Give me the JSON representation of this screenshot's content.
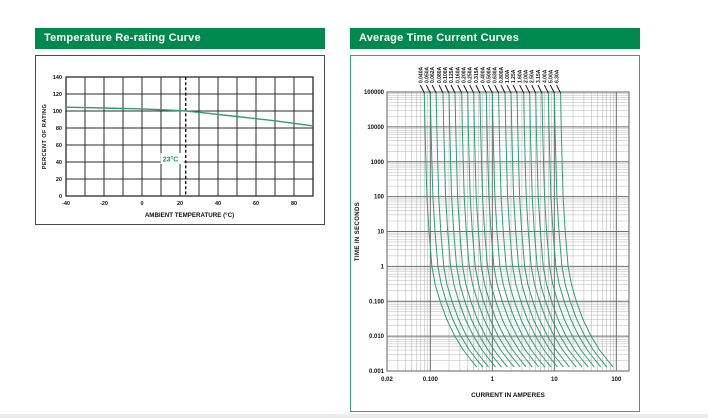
{
  "page": {
    "background": "#ffffff",
    "footer_strip_color": "#e9edf2"
  },
  "left_panel": {
    "title": "Temperature Re-rating Curve",
    "header_bg": "#00894E",
    "header_text_color": "#ffffff",
    "box_border_color": "#4a4a4a"
  },
  "right_panel": {
    "title": "Average Time Current Curves",
    "header_bg": "#00894E",
    "header_text_color": "#ffffff",
    "box_border_color": "#3aa07c"
  },
  "chart_data": [
    {
      "type": "line",
      "title": "Temperature Re-rating Curve",
      "xlabel": "AMBIENT TEMPERATURE (°C)",
      "ylabel": "PERCENT OF RATING",
      "xlim": [
        -40,
        90
      ],
      "ylim": [
        0,
        140
      ],
      "x_ticks": [
        -40,
        -20,
        0,
        20,
        40,
        60,
        80
      ],
      "y_ticks": [
        0,
        20,
        40,
        60,
        80,
        100,
        120,
        140
      ],
      "x_grid_step": 10,
      "y_grid_step": 20,
      "grid_color": "#2b2b2b",
      "curve_color": "#2e9c74",
      "reference_line": {
        "x": 23,
        "label": "23°C",
        "label_color": "#169b62",
        "line_style": "dashed"
      },
      "series": [
        {
          "name": "percent-of-rating-vs-temperature",
          "points": [
            [
              -40,
              104.5
            ],
            [
              -30,
              104
            ],
            [
              -20,
              103.5
            ],
            [
              -10,
              103
            ],
            [
              0,
              102.5
            ],
            [
              10,
              101.5
            ],
            [
              23,
              100
            ],
            [
              30,
              98.5
            ],
            [
              40,
              96
            ],
            [
              50,
              93.5
            ],
            [
              60,
              91
            ],
            [
              70,
              88.5
            ],
            [
              80,
              85.5
            ],
            [
              90,
              82.5
            ]
          ]
        }
      ]
    },
    {
      "type": "line",
      "title": "Average Time Current Curves",
      "xlabel": "CURRENT IN AMPERES",
      "ylabel": "TIME IN SECONDS",
      "x_scale": "log",
      "y_scale": "log",
      "xlim": [
        0.02,
        160
      ],
      "ylim": [
        0.001,
        100000
      ],
      "x_ticks": [
        0.02,
        0.1,
        1,
        10,
        100
      ],
      "x_tick_labels": [
        "0.02",
        "0.100",
        "1",
        "10",
        "100"
      ],
      "y_ticks": [
        100000,
        10000,
        1000,
        100,
        10,
        1,
        0.1,
        0.01,
        0.001
      ],
      "y_tick_labels": [
        "100000",
        "10000",
        "1000",
        "100",
        "10",
        "1",
        "0.100",
        "0.010",
        "0.001"
      ],
      "grid_major_color": "#6f6f6f",
      "grid_minor_color": "#b9b9b9",
      "curve_color": "#2e9c74",
      "ratings": [
        0.04,
        0.05,
        0.062,
        0.08,
        0.1,
        0.125,
        0.16,
        0.2,
        0.25,
        0.315,
        0.4,
        0.5,
        0.63,
        0.8,
        1.0,
        1.25,
        1.6,
        2.0,
        2.5,
        3.15,
        4.0,
        5.0,
        6.3
      ],
      "rating_labels": [
        "0.040A",
        "0.050A",
        "0.062A",
        "0.080A",
        "0.100A",
        "0.125A",
        "0.160A",
        "0.200A",
        "0.250A",
        "0.315A",
        "0.400A",
        "0.500A",
        "0.630A",
        "0.800A",
        "1.00A",
        "1.25A",
        "1.60A",
        "2.00A",
        "2.50A",
        "3.15A",
        "4.00A",
        "5.00A",
        "6.30A"
      ],
      "time_multiple_profile": [
        [
          100000,
          2.0
        ],
        [
          10000,
          2.05
        ],
        [
          1000,
          2.12
        ],
        [
          100,
          2.2
        ],
        [
          10,
          2.38
        ],
        [
          1,
          2.65
        ],
        [
          0.3,
          3.0
        ],
        [
          0.1,
          3.6
        ],
        [
          0.03,
          4.6
        ],
        [
          0.01,
          6.2
        ],
        [
          0.004,
          8.5
        ],
        [
          0.002,
          11.5
        ],
        [
          0.0013,
          14.0
        ]
      ]
    }
  ]
}
